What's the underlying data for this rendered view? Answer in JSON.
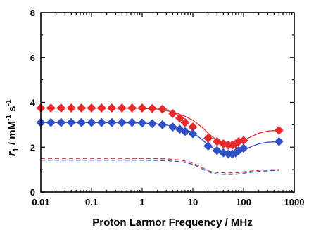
{
  "chart_data": {
    "type": "scatter",
    "title": "",
    "xlabel": "Proton Larmor Frequency / MHz",
    "ylabel": {
      "symbol": "r",
      "subscript": "1",
      "unit_prefix": " / mM",
      "exp1": "-1",
      "unit_mid": " s",
      "exp2": "-1"
    },
    "xscale": "log",
    "xlim": [
      0.01,
      1000
    ],
    "ylim": [
      0,
      8
    ],
    "xticks": [
      0.01,
      0.1,
      1,
      10,
      100,
      1000
    ],
    "xtick_labels": [
      "0.01",
      "0.1",
      "1",
      "10",
      "100",
      "1000"
    ],
    "yticks": [
      0,
      2,
      4,
      6,
      8
    ],
    "ytick_labels": [
      "0",
      "2",
      "4",
      "6",
      "8"
    ],
    "grid": false,
    "legend": "none",
    "series": [
      {
        "kind": "points",
        "marker": "diamond",
        "color": "#e8292b",
        "x": [
          0.01,
          0.0158,
          0.0251,
          0.0398,
          0.0631,
          0.1,
          0.158,
          0.251,
          0.398,
          0.631,
          1.0,
          1.58,
          2.51,
          4.0,
          5.5,
          7.0,
          10.0,
          20,
          30,
          40,
          50,
          60,
          70,
          80,
          100,
          500
        ],
        "y": [
          3.75,
          3.75,
          3.75,
          3.75,
          3.75,
          3.75,
          3.75,
          3.75,
          3.75,
          3.75,
          3.75,
          3.73,
          3.7,
          3.5,
          3.3,
          3.1,
          2.9,
          2.4,
          2.25,
          2.15,
          2.1,
          2.1,
          2.15,
          2.25,
          2.3,
          2.75
        ]
      },
      {
        "kind": "points",
        "marker": "diamond",
        "color": "#2f4fc4",
        "x": [
          0.01,
          0.0158,
          0.0251,
          0.0398,
          0.0631,
          0.1,
          0.158,
          0.251,
          0.398,
          0.631,
          1.0,
          1.58,
          2.51,
          4.0,
          5.5,
          7.0,
          10.0,
          20,
          30,
          40,
          50,
          60,
          70,
          80,
          100,
          500
        ],
        "y": [
          3.1,
          3.1,
          3.1,
          3.1,
          3.1,
          3.1,
          3.1,
          3.1,
          3.1,
          3.1,
          3.08,
          3.05,
          3.0,
          2.9,
          2.8,
          2.7,
          2.6,
          2.05,
          1.85,
          1.75,
          1.7,
          1.7,
          1.75,
          1.85,
          1.95,
          2.25
        ]
      },
      {
        "kind": "line",
        "color": "#e8292b",
        "dash": "none",
        "x": [
          0.01,
          0.1,
          1,
          2,
          4,
          7,
          10,
          15,
          20,
          30,
          40,
          50,
          60,
          70,
          80,
          100,
          150,
          200,
          300,
          500
        ],
        "y": [
          3.75,
          3.75,
          3.74,
          3.7,
          3.58,
          3.38,
          3.2,
          2.9,
          2.62,
          2.3,
          2.18,
          2.12,
          2.12,
          2.15,
          2.2,
          2.3,
          2.5,
          2.62,
          2.72,
          2.75
        ]
      },
      {
        "kind": "line",
        "color": "#2f4fc4",
        "dash": "none",
        "x": [
          0.01,
          0.1,
          1,
          2,
          4,
          7,
          10,
          15,
          20,
          30,
          40,
          50,
          60,
          70,
          80,
          100,
          150,
          200,
          300,
          500
        ],
        "y": [
          3.1,
          3.1,
          3.08,
          3.04,
          2.95,
          2.8,
          2.65,
          2.35,
          2.1,
          1.85,
          1.74,
          1.7,
          1.7,
          1.72,
          1.77,
          1.88,
          2.05,
          2.15,
          2.22,
          2.25
        ]
      },
      {
        "kind": "line",
        "color": "#e8292b",
        "dash": "6,4",
        "x": [
          0.01,
          1,
          3,
          6,
          10,
          20,
          30,
          50,
          70,
          100,
          200,
          300,
          500
        ],
        "y": [
          1.5,
          1.5,
          1.48,
          1.42,
          1.3,
          0.95,
          0.87,
          0.85,
          0.86,
          0.9,
          0.97,
          0.99,
          1.0
        ]
      },
      {
        "kind": "line",
        "color": "#2f4fc4",
        "dash": "6,4",
        "x": [
          0.01,
          1,
          3,
          6,
          10,
          20,
          30,
          50,
          70,
          100,
          200,
          300,
          500
        ],
        "y": [
          1.42,
          1.42,
          1.4,
          1.35,
          1.24,
          0.9,
          0.8,
          0.78,
          0.79,
          0.84,
          0.92,
          0.95,
          0.97
        ]
      }
    ]
  }
}
